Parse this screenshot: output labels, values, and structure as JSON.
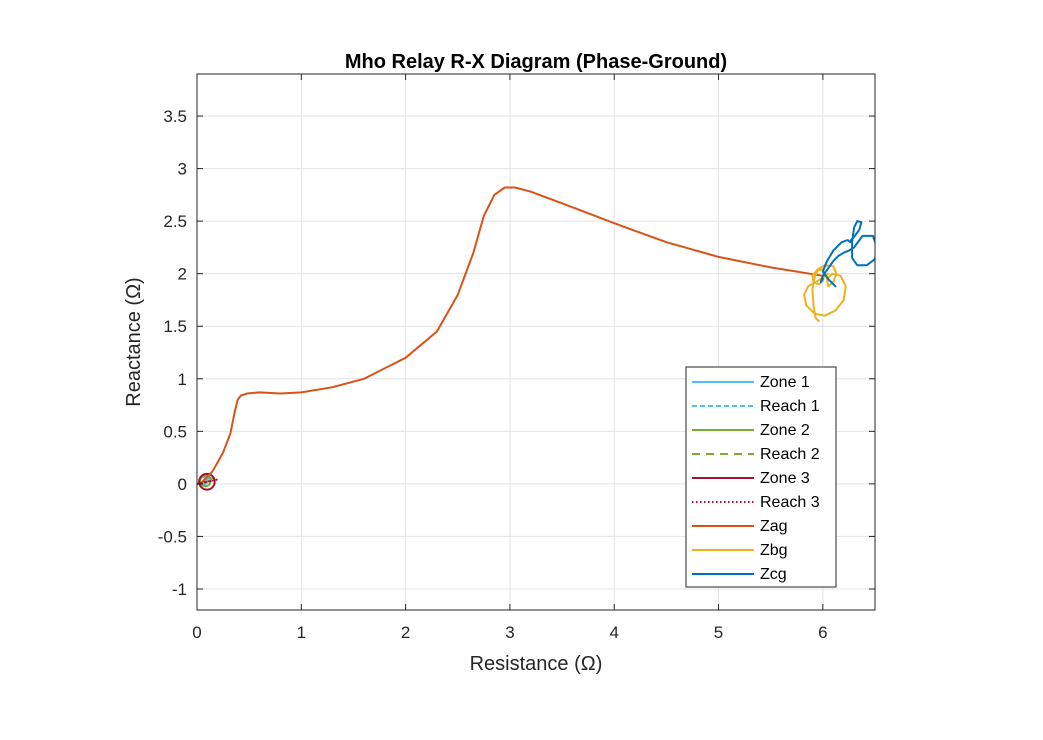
{
  "chart_data": {
    "type": "line",
    "title": "Mho Relay R-X Diagram (Phase-Ground)",
    "xlabel": "Resistance (Ω)",
    "ylabel": "Reactance (Ω)",
    "xlim": [
      0,
      6.5
    ],
    "ylim": [
      -1.2,
      3.9
    ],
    "xticks": [
      0,
      1,
      2,
      3,
      4,
      5,
      6
    ],
    "yticks": [
      -1,
      -0.5,
      0,
      0.5,
      1,
      1.5,
      2,
      2.5,
      3,
      3.5
    ],
    "xtick_labels": [
      "0",
      "1",
      "2",
      "3",
      "4",
      "5",
      "6"
    ],
    "ytick_labels": [
      "-1",
      "-0.5",
      "0",
      "0.5",
      "1",
      "1.5",
      "2",
      "2.5",
      "3",
      "3.5"
    ],
    "grid": true,
    "legend_position": "bottom-right",
    "series": [
      {
        "name": "Zone 1",
        "style": "solid",
        "color": "#4DBEEE",
        "shape": "circle",
        "center": [
          0.065,
          0.03
        ],
        "radius": 0.035
      },
      {
        "name": "Reach 1",
        "style": "dashed",
        "color": "#4DBEEE",
        "x": [
          0,
          0.13
        ],
        "y": [
          0,
          0.06
        ]
      },
      {
        "name": "Zone 2",
        "style": "solid",
        "color": "#77AC30",
        "shape": "circle",
        "center": [
          0.08,
          0.03
        ],
        "radius": 0.052
      },
      {
        "name": "Reach 2",
        "style": "dashed-long",
        "color": "#77AC30",
        "x": [
          0,
          0.16
        ],
        "y": [
          0,
          0.06
        ]
      },
      {
        "name": "Zone 3",
        "style": "solid",
        "color": "#A2142F",
        "shape": "circle",
        "center": [
          0.095,
          0.02
        ],
        "radius": 0.075
      },
      {
        "name": "Reach 3",
        "style": "dotted",
        "color": "#A2142F",
        "x": [
          0,
          0.19
        ],
        "y": [
          0,
          0.04
        ]
      },
      {
        "name": "Zag",
        "style": "solid",
        "color": "#D95319",
        "x": [
          0.05,
          0.15,
          0.25,
          0.32,
          0.36,
          0.39,
          0.42,
          0.48,
          0.6,
          0.8,
          1.0,
          1.3,
          1.6,
          2.0,
          2.3,
          2.5,
          2.65,
          2.75,
          2.85,
          2.95,
          3.05,
          3.2,
          3.5,
          4.0,
          4.5,
          5.0,
          5.5,
          6.0
        ],
        "y": [
          0.02,
          0.12,
          0.3,
          0.48,
          0.68,
          0.8,
          0.84,
          0.86,
          0.87,
          0.86,
          0.87,
          0.92,
          1.0,
          1.2,
          1.45,
          1.8,
          2.2,
          2.55,
          2.75,
          2.82,
          2.82,
          2.78,
          2.67,
          2.48,
          2.3,
          2.16,
          2.06,
          1.98
        ]
      },
      {
        "name": "Zbg",
        "style": "solid",
        "color": "#EDB120",
        "x": [
          6.05,
          6.0,
          5.93,
          5.86,
          5.82,
          5.84,
          5.92,
          6.02,
          6.12,
          6.2,
          6.22,
          6.17,
          6.09,
          6.04,
          6.05,
          6.1,
          6.13,
          6.1,
          6.02,
          5.95,
          5.9,
          5.91,
          5.96,
          6.0,
          6.02,
          6.0,
          5.95,
          5.92,
          5.9,
          5.91,
          5.93,
          5.96
        ],
        "y": [
          2.0,
          1.96,
          1.92,
          1.88,
          1.8,
          1.7,
          1.62,
          1.6,
          1.65,
          1.75,
          1.88,
          1.98,
          2.0,
          1.95,
          1.88,
          1.92,
          2.0,
          2.07,
          2.08,
          2.04,
          1.98,
          1.92,
          1.9,
          1.93,
          2.0,
          2.04,
          2.03,
          1.96,
          1.85,
          1.7,
          1.58,
          1.55
        ]
      },
      {
        "name": "Zcg",
        "style": "solid",
        "color": "#0072BD",
        "x": [
          6.0,
          5.98,
          6.0,
          6.05,
          6.1,
          6.15,
          6.2,
          6.25,
          6.3,
          6.38,
          6.48,
          6.52,
          6.5,
          6.42,
          6.33,
          6.28,
          6.28,
          6.3,
          6.33,
          6.37,
          6.35,
          6.3,
          6.27,
          6.26,
          6.24,
          6.18,
          6.1,
          6.04,
          6.0,
          6.05,
          6.1,
          6.12
        ],
        "y": [
          1.95,
          1.92,
          1.98,
          2.05,
          2.12,
          2.17,
          2.2,
          2.22,
          2.25,
          2.36,
          2.36,
          2.25,
          2.14,
          2.08,
          2.08,
          2.15,
          2.3,
          2.44,
          2.5,
          2.49,
          2.42,
          2.35,
          2.32,
          2.3,
          2.32,
          2.3,
          2.22,
          2.12,
          2.02,
          1.95,
          1.9,
          1.88
        ]
      }
    ]
  }
}
